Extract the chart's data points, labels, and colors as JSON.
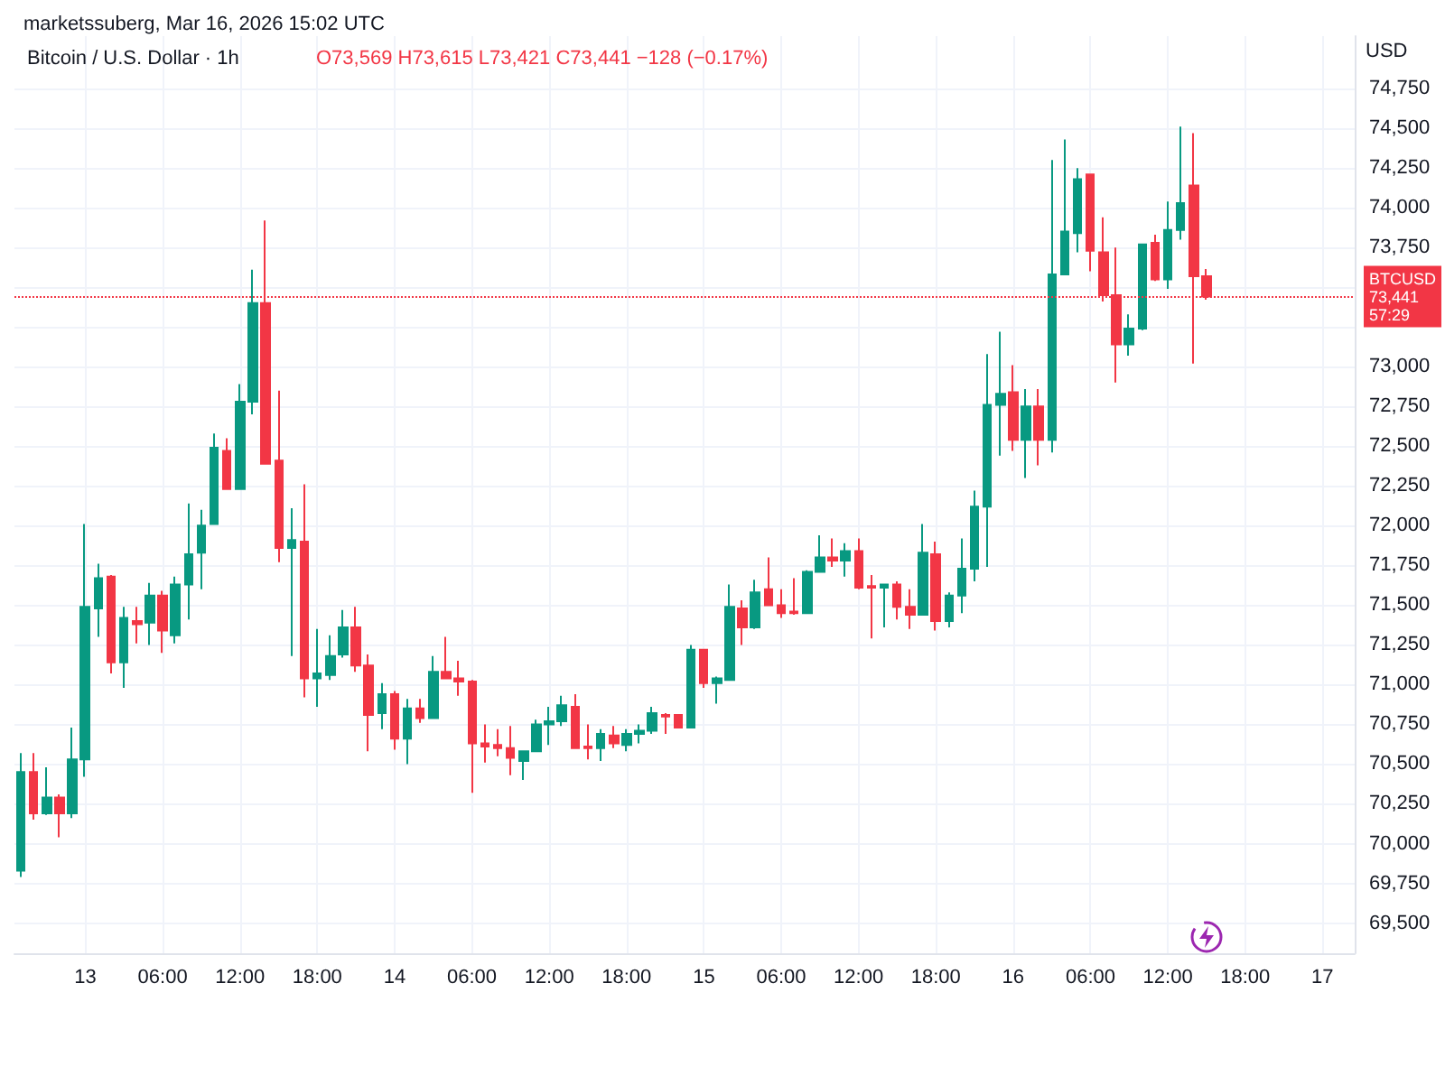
{
  "chart_data": {
    "type": "candlestick",
    "title": "Bitcoin / U.S. Dollar · 1h",
    "subtitle": "O73,569 H73,615 L73,421 C73,441 −128 (−0.17%)",
    "ylabel": "USD",
    "annotations": [
      "marketssuberg, Mar 16, 2026 15:02 UTC"
    ],
    "x": [
      "2026-03-12T19:00",
      "2026-03-12T20:00",
      "2026-03-12T21:00",
      "2026-03-12T22:00",
      "2026-03-12T23:00",
      "2026-03-13T00:00",
      "2026-03-13T01:00",
      "2026-03-13T02:00",
      "2026-03-13T03:00",
      "2026-03-13T04:00",
      "2026-03-13T05:00",
      "2026-03-13T06:00",
      "2026-03-13T07:00",
      "2026-03-13T08:00",
      "2026-03-13T09:00",
      "2026-03-13T10:00",
      "2026-03-13T11:00",
      "2026-03-13T12:00",
      "2026-03-13T13:00",
      "2026-03-13T14:00",
      "2026-03-13T15:00",
      "2026-03-13T16:00",
      "2026-03-13T17:00",
      "2026-03-13T18:00",
      "2026-03-13T19:00",
      "2026-03-13T20:00",
      "2026-03-13T21:00",
      "2026-03-13T22:00",
      "2026-03-13T23:00",
      "2026-03-14T00:00",
      "2026-03-14T01:00",
      "2026-03-14T02:00",
      "2026-03-14T03:00",
      "2026-03-14T04:00",
      "2026-03-14T05:00",
      "2026-03-14T06:00",
      "2026-03-14T07:00",
      "2026-03-14T08:00",
      "2026-03-14T09:00",
      "2026-03-14T10:00",
      "2026-03-14T11:00",
      "2026-03-14T12:00",
      "2026-03-14T13:00",
      "2026-03-14T14:00",
      "2026-03-14T15:00",
      "2026-03-14T16:00",
      "2026-03-14T17:00",
      "2026-03-14T18:00",
      "2026-03-14T19:00",
      "2026-03-14T20:00",
      "2026-03-14T21:00",
      "2026-03-14T22:00",
      "2026-03-14T23:00",
      "2026-03-15T00:00",
      "2026-03-15T01:00",
      "2026-03-15T02:00",
      "2026-03-15T03:00",
      "2026-03-15T04:00",
      "2026-03-15T05:00",
      "2026-03-15T06:00",
      "2026-03-15T07:00",
      "2026-03-15T08:00",
      "2026-03-15T09:00",
      "2026-03-15T10:00",
      "2026-03-15T11:00",
      "2026-03-15T12:00",
      "2026-03-15T13:00",
      "2026-03-15T14:00",
      "2026-03-15T15:00",
      "2026-03-15T16:00",
      "2026-03-15T17:00",
      "2026-03-15T18:00",
      "2026-03-15T19:00",
      "2026-03-15T20:00",
      "2026-03-15T21:00",
      "2026-03-15T22:00",
      "2026-03-15T23:00",
      "2026-03-16T00:00",
      "2026-03-16T01:00",
      "2026-03-16T02:00",
      "2026-03-16T03:00",
      "2026-03-16T04:00",
      "2026-03-16T05:00",
      "2026-03-16T06:00",
      "2026-03-16T07:00",
      "2026-03-16T08:00",
      "2026-03-16T09:00",
      "2026-03-16T10:00",
      "2026-03-16T11:00",
      "2026-03-16T12:00",
      "2026-03-16T13:00",
      "2026-03-16T14:00",
      "2026-03-16T15:00"
    ],
    "ohlc": [
      [
        69830,
        70570,
        69790,
        70450
      ],
      [
        70450,
        70570,
        70150,
        70190
      ],
      [
        70190,
        70480,
        70180,
        70290
      ],
      [
        70290,
        70310,
        70040,
        70190
      ],
      [
        70190,
        70730,
        70160,
        70530
      ],
      [
        70530,
        72010,
        70420,
        71490
      ],
      [
        71480,
        71760,
        71300,
        71670
      ],
      [
        71680,
        71690,
        71070,
        71140
      ],
      [
        71140,
        71490,
        70980,
        71420
      ],
      [
        71400,
        71490,
        71260,
        71380
      ],
      [
        71390,
        71640,
        71250,
        71560
      ],
      [
        71560,
        71590,
        71200,
        71340
      ],
      [
        71310,
        71680,
        71260,
        71630
      ],
      [
        71630,
        72140,
        71410,
        71820
      ],
      [
        71830,
        72100,
        71600,
        72000
      ],
      [
        72010,
        72580,
        72010,
        72490
      ],
      [
        72470,
        72550,
        72230,
        72230
      ],
      [
        72230,
        72890,
        72230,
        72780
      ],
      [
        72780,
        73610,
        72700,
        73400
      ],
      [
        73400,
        73920,
        72390,
        72390
      ],
      [
        72410,
        72850,
        71770,
        71860
      ],
      [
        71860,
        72110,
        71180,
        71910
      ],
      [
        71900,
        72260,
        70920,
        71040
      ],
      [
        71040,
        71350,
        70860,
        71070
      ],
      [
        71060,
        71310,
        71030,
        71180
      ],
      [
        71190,
        71470,
        71170,
        71360
      ],
      [
        71360,
        71490,
        71080,
        71120
      ],
      [
        71120,
        71190,
        70580,
        70810
      ],
      [
        70820,
        71010,
        70720,
        70940
      ],
      [
        70940,
        70960,
        70590,
        70660
      ],
      [
        70660,
        70910,
        70500,
        70850
      ],
      [
        70850,
        70910,
        70760,
        70790
      ],
      [
        70790,
        71180,
        70790,
        71080
      ],
      [
        71080,
        71300,
        71040,
        71040
      ],
      [
        71040,
        71150,
        70930,
        71020
      ],
      [
        71020,
        71030,
        70320,
        70630
      ],
      [
        70630,
        70750,
        70510,
        70610
      ],
      [
        70620,
        70720,
        70550,
        70600
      ],
      [
        70600,
        70740,
        70430,
        70540
      ],
      [
        70520,
        70580,
        70400,
        70580
      ],
      [
        70580,
        70780,
        70580,
        70750
      ],
      [
        70750,
        70860,
        70620,
        70770
      ],
      [
        70770,
        70930,
        70740,
        70870
      ],
      [
        70860,
        70940,
        70600,
        70600
      ],
      [
        70610,
        70750,
        70530,
        70600
      ],
      [
        70600,
        70720,
        70520,
        70690
      ],
      [
        70680,
        70740,
        70600,
        70630
      ],
      [
        70620,
        70720,
        70580,
        70690
      ],
      [
        70690,
        70750,
        70630,
        70710
      ],
      [
        70710,
        70860,
        70690,
        70820
      ],
      [
        70810,
        70820,
        70690,
        70800
      ],
      [
        70810,
        70810,
        70730,
        70730
      ],
      [
        70730,
        71250,
        70730,
        71220
      ],
      [
        71220,
        71220,
        70980,
        71010
      ],
      [
        71010,
        71050,
        70880,
        71040
      ],
      [
        71030,
        71630,
        71030,
        71490
      ],
      [
        71480,
        71530,
        71250,
        71360
      ],
      [
        71360,
        71660,
        71350,
        71580
      ],
      [
        71600,
        71800,
        71500,
        71500
      ],
      [
        71500,
        71600,
        71420,
        71450
      ],
      [
        71460,
        71670,
        71440,
        71450
      ],
      [
        71450,
        71720,
        71450,
        71710
      ],
      [
        71710,
        71940,
        71710,
        71800
      ],
      [
        71800,
        71920,
        71740,
        71780
      ],
      [
        71780,
        71890,
        71680,
        71840
      ],
      [
        71840,
        71920,
        71600,
        71610
      ],
      [
        71620,
        71690,
        71290,
        71610
      ],
      [
        71610,
        71630,
        71360,
        71630
      ],
      [
        71630,
        71650,
        71410,
        71490
      ],
      [
        71490,
        71600,
        71350,
        71440
      ],
      [
        71440,
        72010,
        71440,
        71830
      ],
      [
        71820,
        71900,
        71340,
        71400
      ],
      [
        71400,
        71580,
        71360,
        71560
      ],
      [
        71560,
        71920,
        71450,
        71730
      ],
      [
        71730,
        72220,
        71650,
        72120
      ],
      [
        72120,
        73080,
        71740,
        72760
      ],
      [
        72760,
        73220,
        72440,
        72830
      ],
      [
        72840,
        73010,
        72470,
        72540
      ],
      [
        72540,
        72860,
        72300,
        72750
      ],
      [
        72750,
        72860,
        72380,
        72540
      ],
      [
        72540,
        74300,
        72460,
        73580
      ],
      [
        73580,
        74430,
        73580,
        73850
      ],
      [
        73840,
        74250,
        73720,
        74180
      ],
      [
        74210,
        74210,
        73600,
        73730
      ],
      [
        73720,
        73940,
        73410,
        73450
      ],
      [
        73450,
        73750,
        72900,
        73140
      ],
      [
        73140,
        73330,
        73070,
        73240
      ],
      [
        73240,
        73770,
        73230,
        73770
      ],
      [
        73780,
        73830,
        73540,
        73550
      ],
      [
        73550,
        74040,
        73490,
        73860
      ],
      [
        73860,
        74510,
        73800,
        74030
      ],
      [
        74140,
        74470,
        73020,
        73570
      ],
      [
        73569,
        73615,
        73421,
        73441
      ]
    ],
    "xlim": [
      "2026-03-12T18:30",
      "2026-03-17T02:30"
    ],
    "xticks": [
      {
        "value": "2026-03-13T00:00",
        "label": "13"
      },
      {
        "value": "2026-03-13T06:00",
        "label": "06:00"
      },
      {
        "value": "2026-03-13T12:00",
        "label": "12:00"
      },
      {
        "value": "2026-03-13T18:00",
        "label": "18:00"
      },
      {
        "value": "2026-03-14T00:00",
        "label": "14"
      },
      {
        "value": "2026-03-14T06:00",
        "label": "06:00"
      },
      {
        "value": "2026-03-14T12:00",
        "label": "12:00"
      },
      {
        "value": "2026-03-14T18:00",
        "label": "18:00"
      },
      {
        "value": "2026-03-15T00:00",
        "label": "15"
      },
      {
        "value": "2026-03-15T06:00",
        "label": "06:00"
      },
      {
        "value": "2026-03-15T12:00",
        "label": "12:00"
      },
      {
        "value": "2026-03-15T18:00",
        "label": "18:00"
      },
      {
        "value": "2026-03-16T00:00",
        "label": "16"
      },
      {
        "value": "2026-03-16T06:00",
        "label": "06:00"
      },
      {
        "value": "2026-03-16T12:00",
        "label": "12:00"
      },
      {
        "value": "2026-03-16T18:00",
        "label": "18:00"
      },
      {
        "value": "2026-03-17T00:00",
        "label": "17"
      }
    ],
    "ylim": [
      69310,
      75080
    ],
    "yticks": [
      {
        "value": 69500,
        "label": "69,500"
      },
      {
        "value": 69750,
        "label": "69,750"
      },
      {
        "value": 70000,
        "label": "70,000"
      },
      {
        "value": 70250,
        "label": "70,250"
      },
      {
        "value": 70500,
        "label": "70,500"
      },
      {
        "value": 70750,
        "label": "70,750"
      },
      {
        "value": 71000,
        "label": "71,000"
      },
      {
        "value": 71250,
        "label": "71,250"
      },
      {
        "value": 71500,
        "label": "71,500"
      },
      {
        "value": 71750,
        "label": "71,750"
      },
      {
        "value": 72000,
        "label": "72,000"
      },
      {
        "value": 72250,
        "label": "72,250"
      },
      {
        "value": 72500,
        "label": "72,500"
      },
      {
        "value": 72750,
        "label": "72,750"
      },
      {
        "value": 73000,
        "label": "73,000"
      },
      {
        "value": 73250,
        "label": null
      },
      {
        "value": 73500,
        "label": null
      },
      {
        "value": 73750,
        "label": "73,750"
      },
      {
        "value": 74000,
        "label": "74,000"
      },
      {
        "value": 74250,
        "label": "74,250"
      },
      {
        "value": 74500,
        "label": "74,500"
      },
      {
        "value": 74750,
        "label": "74,750"
      }
    ],
    "ref_lines": [
      {
        "axis": "y",
        "value": 73441,
        "label": "BTCUSD 73,441 57:29",
        "color": "#f23645",
        "line_style": "dotted"
      }
    ],
    "grid": true
  }
}
